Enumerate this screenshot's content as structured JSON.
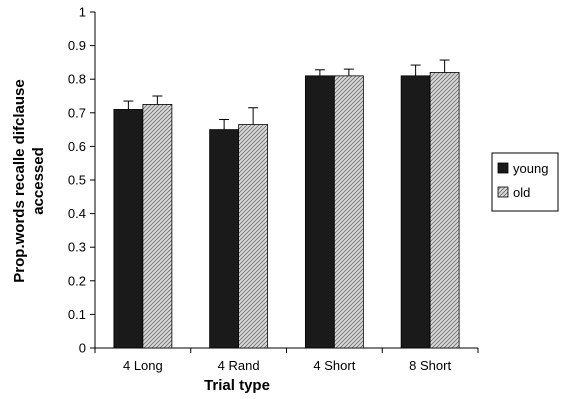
{
  "chart_data": {
    "type": "bar",
    "title": "",
    "xlabel": "Trial type",
    "ylabel_lines": [
      "Prop.words recalle difclause",
      "accessed"
    ],
    "categories": [
      "4 Long",
      "4 Rand",
      "4 Short",
      "8 Short"
    ],
    "ylim": [
      0,
      1
    ],
    "yticks": [
      0,
      0.1,
      0.2,
      0.3,
      0.4,
      0.5,
      0.6,
      0.7,
      0.8,
      0.9,
      1
    ],
    "grid": false,
    "legend_position": "right",
    "series": [
      {
        "name": "young",
        "values": [
          0.71,
          0.65,
          0.81,
          0.81
        ],
        "errors": [
          0.025,
          0.03,
          0.018,
          0.032
        ],
        "color": "#1a1a1a",
        "pattern": "solid"
      },
      {
        "name": "old",
        "values": [
          0.725,
          0.665,
          0.81,
          0.82
        ],
        "errors": [
          0.025,
          0.05,
          0.02,
          0.037
        ],
        "color": "#c8c8c8",
        "pattern": "diagonal-hatch"
      }
    ]
  }
}
